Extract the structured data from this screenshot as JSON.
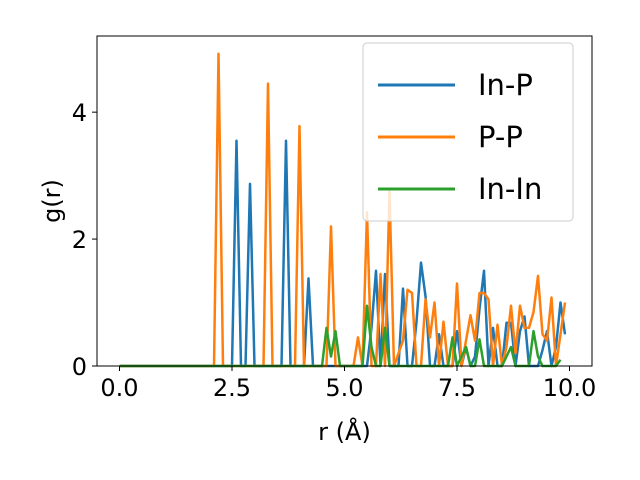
{
  "chart_data": {
    "type": "line",
    "xlabel": "r (Å)",
    "ylabel": "g(r)",
    "xlim": [
      -0.5,
      10.5
    ],
    "ylim": [
      0,
      5.2
    ],
    "xticks": [
      0.0,
      2.5,
      5.0,
      7.5,
      10.0
    ],
    "xtick_labels": [
      "0.0",
      "2.5",
      "5.0",
      "7.5",
      "10.0"
    ],
    "yticks": [
      0,
      2,
      4
    ],
    "ytick_labels": [
      "0",
      "2",
      "4"
    ],
    "grid": false,
    "legend_position": "top-right",
    "series": [
      {
        "name": "In-P",
        "color": "#1f77b4",
        "points": [
          [
            0.0,
            0
          ],
          [
            2.5,
            0
          ],
          [
            2.6,
            3.55
          ],
          [
            2.7,
            0
          ],
          [
            2.8,
            0
          ],
          [
            2.9,
            2.87
          ],
          [
            3.0,
            0
          ],
          [
            3.6,
            0
          ],
          [
            3.7,
            3.55
          ],
          [
            3.8,
            0
          ],
          [
            4.1,
            0
          ],
          [
            4.2,
            1.38
          ],
          [
            4.3,
            0
          ],
          [
            5.5,
            0
          ],
          [
            5.6,
            0.6
          ],
          [
            5.7,
            1.5
          ],
          [
            5.8,
            0
          ],
          [
            5.9,
            1.45
          ],
          [
            6.0,
            0
          ],
          [
            6.2,
            0
          ],
          [
            6.3,
            1.22
          ],
          [
            6.4,
            0
          ],
          [
            6.5,
            0
          ],
          [
            6.6,
            0.7
          ],
          [
            6.7,
            1.63
          ],
          [
            6.8,
            1.1
          ],
          [
            6.9,
            0
          ],
          [
            7.0,
            0
          ],
          [
            7.1,
            0.5
          ],
          [
            7.2,
            0
          ],
          [
            7.3,
            0
          ],
          [
            7.4,
            0
          ],
          [
            7.5,
            0.55
          ],
          [
            7.6,
            0
          ],
          [
            7.7,
            0.3
          ],
          [
            7.8,
            0
          ],
          [
            7.9,
            0.15
          ],
          [
            8.0,
            0.9
          ],
          [
            8.1,
            1.5
          ],
          [
            8.2,
            0
          ],
          [
            8.3,
            0.6
          ],
          [
            8.4,
            0
          ],
          [
            8.5,
            0
          ],
          [
            8.6,
            0.68
          ],
          [
            8.7,
            0.68
          ],
          [
            8.8,
            0
          ],
          [
            8.9,
            0.55
          ],
          [
            9.0,
            0.78
          ],
          [
            9.1,
            0
          ],
          [
            9.3,
            0
          ],
          [
            9.4,
            0.25
          ],
          [
            9.5,
            0.55
          ],
          [
            9.6,
            0
          ],
          [
            9.7,
            0.3
          ],
          [
            9.8,
            1.0
          ],
          [
            9.9,
            0.5
          ]
        ]
      },
      {
        "name": "P-P",
        "color": "#ff7f0e",
        "points": [
          [
            0.0,
            0
          ],
          [
            2.1,
            0
          ],
          [
            2.2,
            4.92
          ],
          [
            2.3,
            0
          ],
          [
            3.2,
            0
          ],
          [
            3.3,
            4.45
          ],
          [
            3.4,
            0
          ],
          [
            3.9,
            0
          ],
          [
            4.0,
            3.78
          ],
          [
            4.1,
            0
          ],
          [
            4.6,
            0
          ],
          [
            4.7,
            2.2
          ],
          [
            4.8,
            0
          ],
          [
            5.2,
            0
          ],
          [
            5.3,
            0.45
          ],
          [
            5.4,
            0
          ],
          [
            5.5,
            2.42
          ],
          [
            5.6,
            0
          ],
          [
            5.7,
            0
          ],
          [
            5.8,
            1.45
          ],
          [
            5.9,
            0
          ],
          [
            6.0,
            2.75
          ],
          [
            6.1,
            0
          ],
          [
            6.3,
            0.4
          ],
          [
            6.4,
            1.2
          ],
          [
            6.5,
            1.15
          ],
          [
            6.6,
            0
          ],
          [
            6.7,
            0
          ],
          [
            6.8,
            1.05
          ],
          [
            6.9,
            0.45
          ],
          [
            7.0,
            1.0
          ],
          [
            7.1,
            0
          ],
          [
            7.2,
            0.7
          ],
          [
            7.3,
            0
          ],
          [
            7.4,
            0
          ],
          [
            7.5,
            1.3
          ],
          [
            7.6,
            0
          ],
          [
            7.7,
            0.4
          ],
          [
            7.8,
            0.8
          ],
          [
            7.9,
            0.4
          ],
          [
            8.0,
            1.15
          ],
          [
            8.1,
            1.15
          ],
          [
            8.2,
            1.05
          ],
          [
            8.3,
            0
          ],
          [
            8.4,
            0.65
          ],
          [
            8.5,
            0
          ],
          [
            8.6,
            0.3
          ],
          [
            8.7,
            0.95
          ],
          [
            8.8,
            0.2
          ],
          [
            8.9,
            0.95
          ],
          [
            9.0,
            0.6
          ],
          [
            9.1,
            0.6
          ],
          [
            9.2,
            0.85
          ],
          [
            9.3,
            1.42
          ],
          [
            9.4,
            0.5
          ],
          [
            9.5,
            0.4
          ],
          [
            9.6,
            1.08
          ],
          [
            9.7,
            0
          ],
          [
            9.8,
            0.5
          ],
          [
            9.9,
            1.0
          ]
        ]
      },
      {
        "name": "In-In",
        "color": "#2ca02c",
        "points": [
          [
            0.0,
            0
          ],
          [
            4.5,
            0
          ],
          [
            4.6,
            0.6
          ],
          [
            4.7,
            0.15
          ],
          [
            4.8,
            0.55
          ],
          [
            4.9,
            0
          ],
          [
            5.4,
            0
          ],
          [
            5.5,
            0.95
          ],
          [
            5.6,
            0.3
          ],
          [
            5.7,
            0
          ],
          [
            5.8,
            0
          ],
          [
            5.9,
            0.6
          ],
          [
            6.0,
            0
          ],
          [
            7.3,
            0
          ],
          [
            7.4,
            0.45
          ],
          [
            7.5,
            0
          ],
          [
            7.6,
            0.15
          ],
          [
            7.7,
            0.3
          ],
          [
            7.8,
            0
          ],
          [
            7.9,
            0
          ],
          [
            8.0,
            0.42
          ],
          [
            8.1,
            0
          ],
          [
            8.5,
            0
          ],
          [
            8.6,
            0.15
          ],
          [
            8.7,
            0.3
          ],
          [
            8.8,
            0
          ],
          [
            9.1,
            0
          ],
          [
            9.2,
            0.55
          ],
          [
            9.3,
            0.15
          ],
          [
            9.4,
            0
          ],
          [
            9.5,
            0
          ],
          [
            9.6,
            0
          ],
          [
            9.7,
            0
          ],
          [
            9.8,
            0.1
          ]
        ]
      }
    ]
  }
}
